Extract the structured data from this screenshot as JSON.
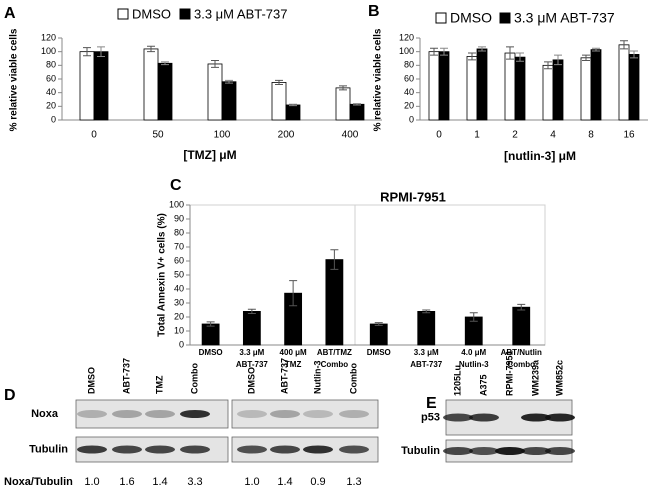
{
  "chart_data": [
    {
      "type": "bar",
      "panel": "A",
      "xlabel": "[TMZ] μM",
      "ylabel": "% relative viable cells",
      "categories": [
        "0",
        "50",
        "100",
        "200",
        "400"
      ],
      "series": [
        {
          "name": "DMSO",
          "color": "#ffffff",
          "values": [
            100,
            104,
            82,
            55,
            47
          ],
          "errors": [
            6,
            4,
            5,
            3,
            3
          ]
        },
        {
          "name": "3.3 μM ABT-737",
          "color": "#000000",
          "values": [
            100,
            83,
            56,
            22,
            23
          ],
          "errors": [
            7,
            2,
            2,
            1,
            1
          ]
        }
      ],
      "ylim": [
        0,
        120
      ],
      "yticks": [
        0,
        20,
        40,
        60,
        80,
        100,
        120
      ],
      "legend": "top"
    },
    {
      "type": "bar",
      "panel": "B",
      "xlabel": "[nutlin-3] μM",
      "ylabel": "% relative viable cells",
      "categories": [
        "0",
        "1",
        "2",
        "4",
        "8",
        "16"
      ],
      "series": [
        {
          "name": "DMSO",
          "color": "#ffffff",
          "values": [
            100,
            93,
            98,
            80,
            91,
            110
          ],
          "errors": [
            5,
            5,
            9,
            5,
            4,
            6
          ]
        },
        {
          "name": "3.3 μM ABT-737",
          "color": "#000000",
          "values": [
            100,
            104,
            92,
            88,
            103,
            96
          ],
          "errors": [
            5,
            3,
            6,
            7,
            2,
            5
          ]
        }
      ],
      "ylim": [
        0,
        120
      ],
      "yticks": [
        0,
        20,
        40,
        60,
        80,
        100,
        120
      ],
      "legend": "top"
    },
    {
      "type": "bar",
      "panel": "C",
      "title": "RPMI-7951",
      "ylabel": "Total Annexin V+ cells (%)",
      "categories": [
        [
          "DMSO"
        ],
        [
          "3.3 μM",
          "ABT-737"
        ],
        [
          "400 μM",
          "TMZ"
        ],
        [
          "ABT/TMZ",
          "Combo"
        ],
        [
          "DMSO"
        ],
        [
          "3.3 μM",
          "ABT-737"
        ],
        [
          "4.0 μM",
          "Nutlin-3"
        ],
        [
          "ABT/Nutlin",
          "Combo"
        ]
      ],
      "series": [
        {
          "color": "#000000",
          "values": [
            15,
            24,
            37,
            61,
            15,
            24,
            20,
            27
          ],
          "errors": [
            1.5,
            1.5,
            9,
            7,
            1,
            1,
            3,
            2
          ]
        }
      ],
      "ylim": [
        0,
        100
      ],
      "yticks": [
        0,
        10,
        20,
        30,
        40,
        50,
        60,
        70,
        80,
        90,
        100
      ]
    }
  ],
  "blots": [
    {
      "panel": "D",
      "columns": [
        "DMSO",
        "ABT-737",
        "TMZ",
        "Combo",
        "DMSO",
        "ABT-737",
        "Nutlin-3",
        "Combo"
      ],
      "rows": [
        "Noxa",
        "Tubulin"
      ],
      "ratio_label": "Noxa/Tubulin",
      "ratios": [
        "1.0",
        "1.6",
        "1.4",
        "3.3",
        "1.0",
        "1.4",
        "0.9",
        "1.3"
      ]
    },
    {
      "panel": "E",
      "columns": [
        "1205Lu",
        "A375",
        "RPMI-7951",
        "WM239a",
        "WM852c"
      ],
      "rows": [
        "p53",
        "Tubulin"
      ]
    }
  ]
}
